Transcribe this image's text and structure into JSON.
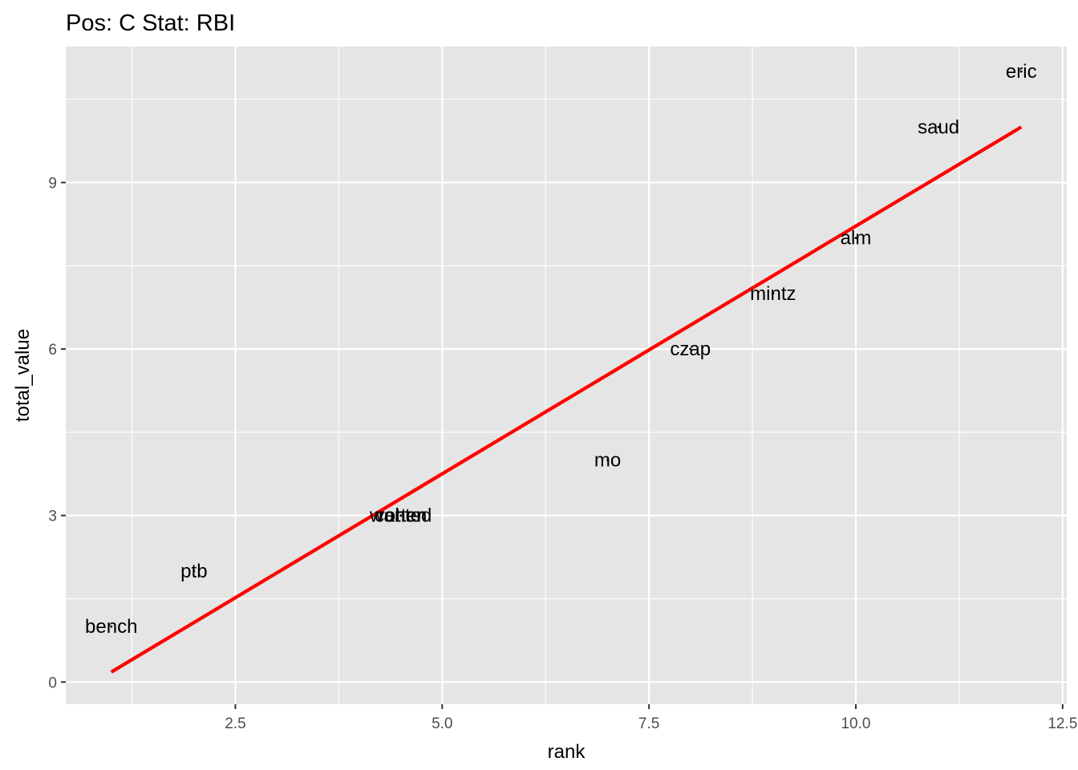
{
  "chart_data": {
    "type": "scatter",
    "title": "Pos: C Stat: RBI",
    "xlabel": "rank",
    "ylabel": "total_value",
    "xlim": [
      0.45,
      12.55
    ],
    "ylim": [
      -0.4,
      11.45
    ],
    "x_ticks": [
      2.5,
      5.0,
      7.5,
      10.0,
      12.5
    ],
    "x_tick_labels": [
      "2.5",
      "5.0",
      "7.5",
      "10.0",
      "12.5"
    ],
    "y_ticks": [
      0,
      3,
      6,
      9
    ],
    "y_tick_labels": [
      "0",
      "3",
      "6",
      "9"
    ],
    "grid": true,
    "panel_background": "#e5e5e5",
    "grid_color": "#ffffff",
    "points": [
      {
        "label": "bench",
        "x": 1,
        "y": 1
      },
      {
        "label": "ptb",
        "x": 2,
        "y": 2
      },
      {
        "label": "cohen",
        "x": 4.5,
        "y": 3
      },
      {
        "label": "wanted",
        "x": 4.5,
        "y": 3
      },
      {
        "label": "rotter",
        "x": 4.5,
        "y": 3
      },
      {
        "label": "mo",
        "x": 7,
        "y": 4
      },
      {
        "label": "czap",
        "x": 8,
        "y": 6
      },
      {
        "label": "mintz",
        "x": 9,
        "y": 7
      },
      {
        "label": "alm",
        "x": 10,
        "y": 8
      },
      {
        "label": "saud",
        "x": 11,
        "y": 10
      },
      {
        "label": "eric",
        "x": 12,
        "y": 11
      }
    ],
    "fit_line": {
      "x": [
        1,
        12
      ],
      "y": [
        0.18,
        10.0
      ],
      "color": "#ff0000"
    }
  }
}
